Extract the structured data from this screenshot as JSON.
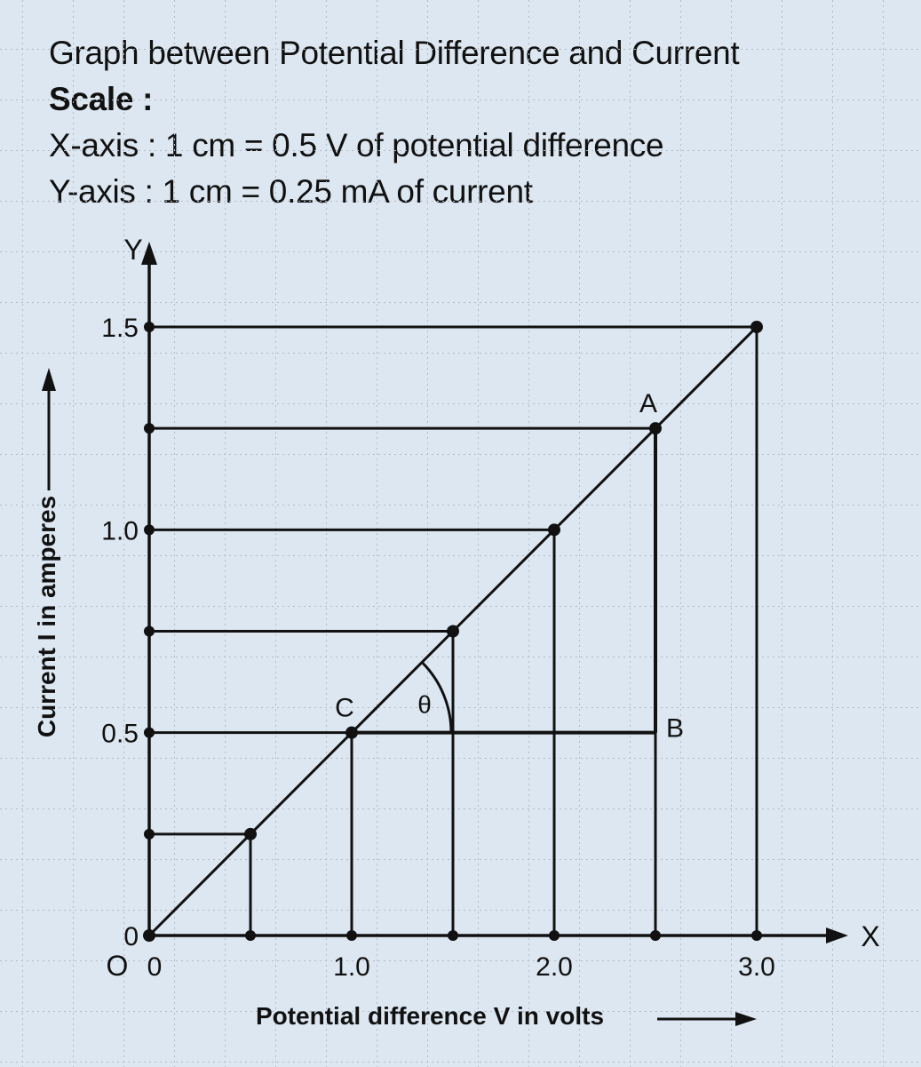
{
  "chart_data": {
    "type": "line",
    "title": "Graph between Potential Difference and Current",
    "scale_heading": "Scale :",
    "scale_x": "X-axis : 1 cm = 0.5 V of potential difference",
    "scale_y": "Y-axis : 1 cm = 0.25 mA of current",
    "xlabel": "Potential difference V in volts",
    "ylabel": "Current I in amperes",
    "x_axis_letter": "X",
    "y_axis_letter": "Y",
    "origin_label": "O",
    "xlim": [
      0,
      3.0
    ],
    "ylim": [
      0,
      1.5
    ],
    "grid": true,
    "x_ticks": [
      {
        "value": 0,
        "label": "0"
      },
      {
        "value": 1.0,
        "label": "1.0"
      },
      {
        "value": 2.0,
        "label": "2.0"
      },
      {
        "value": 3.0,
        "label": "3.0"
      }
    ],
    "y_ticks": [
      {
        "value": 0,
        "label": "0"
      },
      {
        "value": 0.5,
        "label": "0.5"
      },
      {
        "value": 1.0,
        "label": "1.0"
      },
      {
        "value": 1.5,
        "label": "1.5"
      }
    ],
    "series": [
      {
        "x": [
          0,
          0.5,
          1.0,
          1.5,
          2.0,
          2.5,
          3.0
        ],
        "y": [
          0,
          0.25,
          0.5,
          0.75,
          1.0,
          1.25,
          1.5
        ]
      }
    ],
    "annotations": [
      {
        "label": "A",
        "x": 2.5,
        "y": 1.25
      },
      {
        "label": "B",
        "x": 2.5,
        "y": 0.5
      },
      {
        "label": "C",
        "x": 1.0,
        "y": 0.5
      },
      {
        "label": "θ",
        "x": 1.0,
        "y": 0.5
      }
    ]
  }
}
